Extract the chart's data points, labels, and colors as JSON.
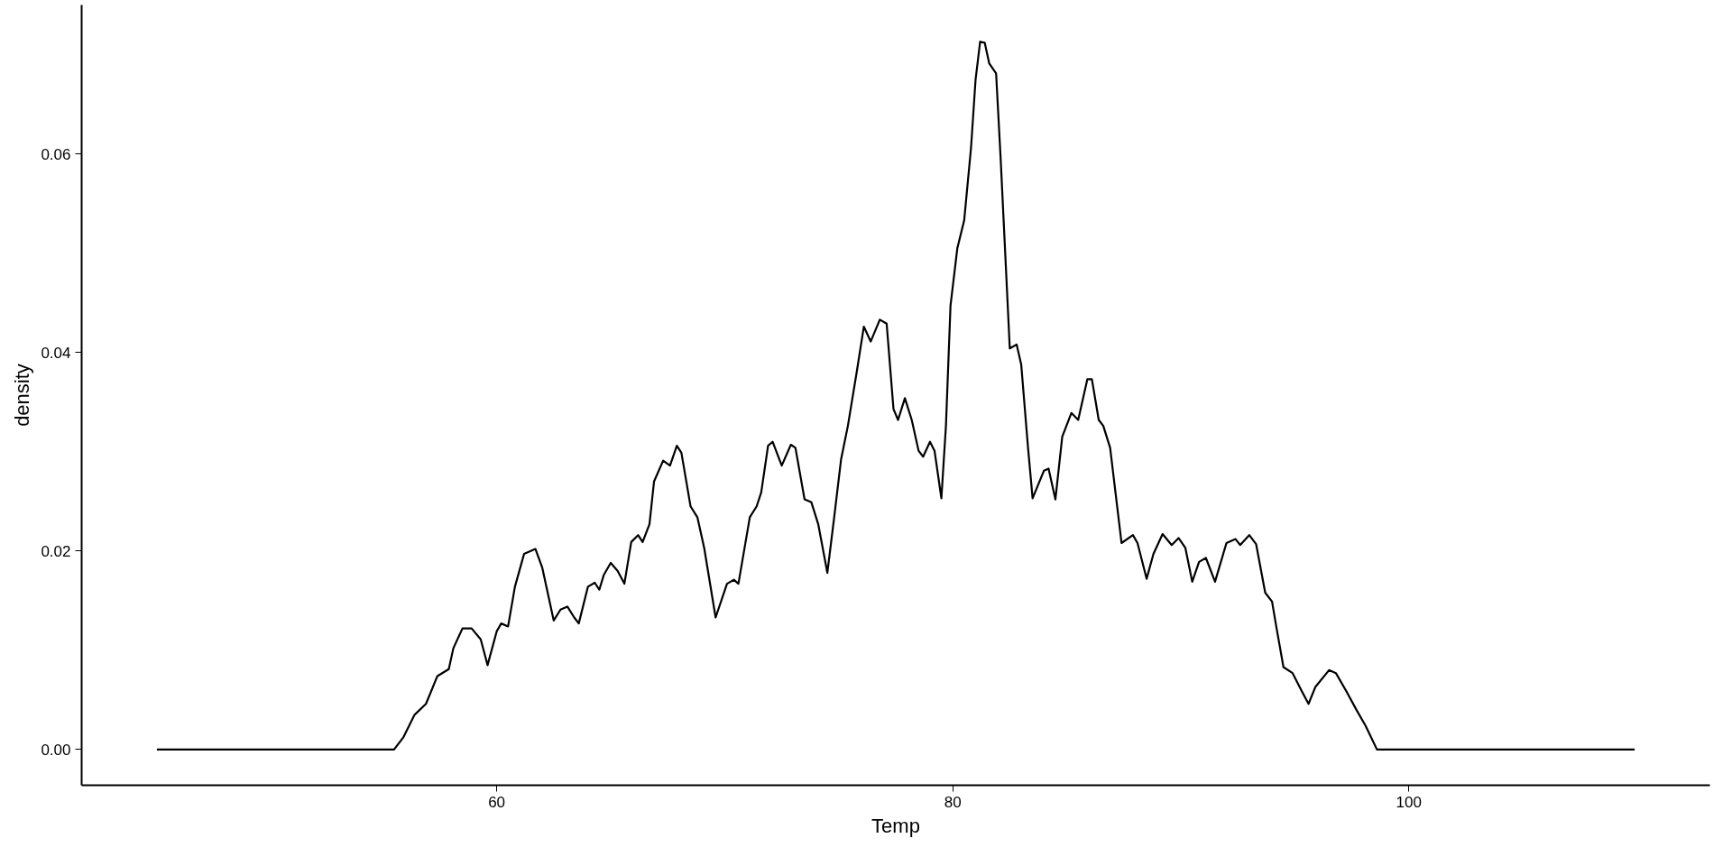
{
  "chart_data": {
    "type": "line",
    "xlabel": "Temp",
    "ylabel": "density",
    "xlim": [
      41.8,
      113.2
    ],
    "ylim": [
      -0.0036,
      0.075
    ],
    "xticks": [
      60,
      80,
      100
    ],
    "yticks": [
      {
        "value": 0,
        "label": "0.00"
      },
      {
        "value": 0.02,
        "label": "0.02"
      },
      {
        "value": 0.04,
        "label": "0.04"
      },
      {
        "value": 0.06,
        "label": "0.06"
      }
    ],
    "grid": false,
    "marker": "none",
    "line_style": "solid",
    "series": [
      {
        "color": "#000000",
        "x": [
          45.1,
          55.5,
          55.9,
          56.4,
          56.9,
          57.4,
          57.9,
          58.1,
          58.5,
          58.9,
          59.3,
          59.6,
          60.0,
          60.2,
          60.5,
          60.8,
          61.2,
          61.7,
          62.0,
          62.5,
          62.8,
          63.1,
          63.4,
          63.6,
          64.0,
          64.3,
          64.5,
          64.7,
          65.0,
          65.3,
          65.6,
          65.9,
          66.2,
          66.4,
          66.7,
          66.9,
          67.3,
          67.6,
          67.9,
          68.1,
          68.5,
          68.8,
          69.1,
          69.6,
          70.1,
          70.4,
          70.6,
          71.1,
          71.4,
          71.6,
          71.9,
          72.1,
          72.5,
          72.9,
          73.1,
          73.5,
          73.8,
          74.1,
          74.5,
          74.8,
          75.1,
          75.4,
          75.8,
          76.1,
          76.4,
          76.8,
          77.1,
          77.4,
          77.6,
          77.9,
          78.2,
          78.5,
          78.7,
          79.0,
          79.2,
          79.5,
          79.7,
          79.9,
          80.2,
          80.5,
          80.8,
          81.0,
          81.2,
          81.4,
          81.6,
          81.9,
          82.1,
          82.5,
          82.8,
          83.0,
          83.3,
          83.5,
          84.0,
          84.2,
          84.5,
          84.8,
          85.2,
          85.5,
          85.9,
          86.1,
          86.4,
          86.6,
          86.9,
          87.4,
          87.9,
          88.1,
          88.5,
          88.8,
          89.2,
          89.6,
          89.9,
          90.2,
          90.5,
          90.8,
          91.1,
          91.5,
          92.0,
          92.4,
          92.6,
          93.0,
          93.3,
          93.7,
          94.0,
          94.2,
          94.5,
          94.9,
          95.3,
          95.6,
          95.9,
          96.5,
          96.8,
          97.3,
          97.7,
          98.1,
          98.6,
          109.9
        ],
        "values": [
          0,
          0,
          0.0012,
          0.0035,
          0.0046,
          0.0074,
          0.0081,
          0.0102,
          0.0122,
          0.0122,
          0.0111,
          0.0085,
          0.0119,
          0.0127,
          0.0124,
          0.0164,
          0.0197,
          0.0202,
          0.0183,
          0.013,
          0.0141,
          0.0144,
          0.0133,
          0.0127,
          0.0164,
          0.0168,
          0.0161,
          0.0176,
          0.0188,
          0.018,
          0.0167,
          0.0209,
          0.0216,
          0.0209,
          0.0227,
          0.027,
          0.0291,
          0.0286,
          0.0306,
          0.0299,
          0.0245,
          0.0234,
          0.0203,
          0.0133,
          0.0167,
          0.0171,
          0.0167,
          0.0234,
          0.0245,
          0.0259,
          0.0306,
          0.031,
          0.0286,
          0.0307,
          0.0304,
          0.0252,
          0.0249,
          0.0227,
          0.0178,
          0.0234,
          0.0292,
          0.0326,
          0.0382,
          0.0426,
          0.0411,
          0.0433,
          0.0429,
          0.0343,
          0.0332,
          0.0354,
          0.0332,
          0.0301,
          0.0295,
          0.031,
          0.0301,
          0.0253,
          0.0326,
          0.0447,
          0.0505,
          0.0533,
          0.0606,
          0.0675,
          0.0713,
          0.0712,
          0.0691,
          0.0681,
          0.0595,
          0.0404,
          0.0408,
          0.0388,
          0.0304,
          0.0253,
          0.0281,
          0.0283,
          0.0252,
          0.0315,
          0.0339,
          0.0332,
          0.0373,
          0.0373,
          0.0332,
          0.0326,
          0.0304,
          0.0208,
          0.0216,
          0.0208,
          0.0172,
          0.0197,
          0.0217,
          0.0206,
          0.0213,
          0.0203,
          0.0169,
          0.0189,
          0.0193,
          0.0169,
          0.0208,
          0.0212,
          0.0206,
          0.0216,
          0.0207,
          0.0158,
          0.0149,
          0.0122,
          0.0083,
          0.0077,
          0.0059,
          0.0046,
          0.0063,
          0.008,
          0.0077,
          0.0057,
          0.004,
          0.0024,
          0,
          0
        ]
      }
    ]
  }
}
